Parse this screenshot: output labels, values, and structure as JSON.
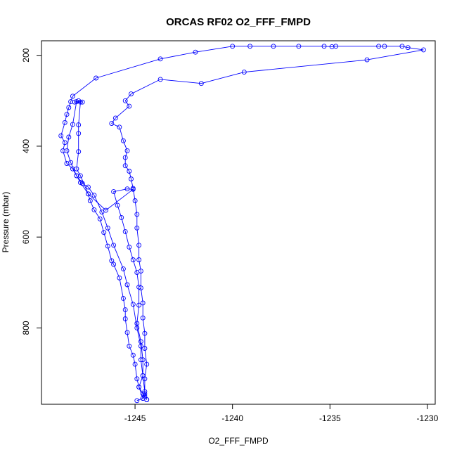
{
  "chart_data": {
    "type": "line",
    "title": "ORCAS RF02 O2_FFF_FMPD",
    "xlabel": "O2_FFF_FMPD",
    "ylabel": "Pressure (mbar)",
    "xlim": [
      -1249.8,
      -1229.6
    ],
    "ylim": [
      168,
      968
    ],
    "y_inverted": true,
    "grid": false,
    "legend": "none",
    "xticks": [
      -1245,
      -1240,
      -1235,
      -1230
    ],
    "yticks": [
      200,
      400,
      600,
      800
    ],
    "xtick_labels": [
      "-1245",
      "-1240",
      "-1235",
      "-1230"
    ],
    "ytick_labels": [
      "200",
      "400",
      "600",
      "800"
    ],
    "line_color": "#0000ff",
    "marker": "open-circle",
    "series": [
      {
        "points": [
          [
            -1244.9,
            960
          ],
          [
            -1244.6,
            955
          ],
          [
            -1244.5,
            950
          ],
          [
            -1244.6,
            945
          ],
          [
            -1244.8,
            930
          ],
          [
            -1244.9,
            912
          ],
          [
            -1245.0,
            880
          ],
          [
            -1245.1,
            860
          ],
          [
            -1245.3,
            840
          ],
          [
            -1245.4,
            810
          ],
          [
            -1245.5,
            780
          ],
          [
            -1245.5,
            760
          ],
          [
            -1245.6,
            735
          ],
          [
            -1245.8,
            690
          ],
          [
            -1246.1,
            660
          ],
          [
            -1246.2,
            652
          ],
          [
            -1246.4,
            620
          ],
          [
            -1246.6,
            590
          ],
          [
            -1246.8,
            560
          ],
          [
            -1247.1,
            540
          ],
          [
            -1247.3,
            520
          ],
          [
            -1247.4,
            505
          ],
          [
            -1247.8,
            480
          ],
          [
            -1248.0,
            465
          ],
          [
            -1248.2,
            450
          ],
          [
            -1248.5,
            438
          ],
          [
            -1248.7,
            410
          ],
          [
            -1248.6,
            392
          ],
          [
            -1248.8,
            377
          ],
          [
            -1248.6,
            348
          ],
          [
            -1248.5,
            330
          ],
          [
            -1248.4,
            315
          ],
          [
            -1248.3,
            302
          ],
          [
            -1248.2,
            290
          ],
          [
            -1247.0,
            250
          ],
          [
            -1243.7,
            208
          ],
          [
            -1241.9,
            193
          ],
          [
            -1240.0,
            180
          ],
          [
            -1239.1,
            180
          ],
          [
            -1237.9,
            180
          ],
          [
            -1236.6,
            180
          ],
          [
            -1235.3,
            180
          ],
          [
            -1234.9,
            181
          ],
          [
            -1234.7,
            180
          ],
          [
            -1232.5,
            180
          ],
          [
            -1232.2,
            180
          ],
          [
            -1231.3,
            180
          ],
          [
            -1231.0,
            183
          ],
          [
            -1230.2,
            188
          ],
          [
            -1233.1,
            210
          ],
          [
            -1239.4,
            237
          ],
          [
            -1241.6,
            262
          ],
          [
            -1243.7,
            253
          ],
          [
            -1245.2,
            285
          ],
          [
            -1245.5,
            300
          ],
          [
            -1245.3,
            312
          ],
          [
            -1246.0,
            338
          ],
          [
            -1246.2,
            350
          ],
          [
            -1245.8,
            358
          ],
          [
            -1245.6,
            388
          ],
          [
            -1245.4,
            410
          ],
          [
            -1245.5,
            425
          ],
          [
            -1245.5,
            443
          ],
          [
            -1245.3,
            455
          ],
          [
            -1245.2,
            472
          ],
          [
            -1245.1,
            493
          ],
          [
            -1245.0,
            520
          ],
          [
            -1244.9,
            550
          ],
          [
            -1244.9,
            580
          ],
          [
            -1244.8,
            618
          ],
          [
            -1244.8,
            650
          ],
          [
            -1244.7,
            675
          ],
          [
            -1244.7,
            712
          ],
          [
            -1244.6,
            745
          ],
          [
            -1244.6,
            778
          ],
          [
            -1244.5,
            812
          ],
          [
            -1244.5,
            845
          ],
          [
            -1244.4,
            880
          ],
          [
            -1244.5,
            912
          ],
          [
            -1244.5,
            945
          ],
          [
            -1244.4,
            958
          ]
        ]
      },
      {
        "points": [
          [
            -1244.4,
            958
          ],
          [
            -1244.5,
            940
          ],
          [
            -1244.6,
            905
          ],
          [
            -1244.7,
            870
          ],
          [
            -1244.7,
            840
          ],
          [
            -1244.9,
            800
          ],
          [
            -1245.1,
            748
          ],
          [
            -1245.4,
            705
          ],
          [
            -1245.6,
            670
          ],
          [
            -1246.1,
            618
          ],
          [
            -1246.4,
            580
          ],
          [
            -1246.7,
            545
          ],
          [
            -1247.1,
            508
          ],
          [
            -1247.4,
            490
          ],
          [
            -1247.7,
            482
          ],
          [
            -1248.0,
            465
          ],
          [
            -1248.3,
            436
          ],
          [
            -1248.5,
            410
          ],
          [
            -1248.4,
            380
          ],
          [
            -1248.2,
            352
          ],
          [
            -1248.0,
            302
          ],
          [
            -1247.7,
            303
          ],
          [
            -1247.9,
            300
          ],
          [
            -1248.1,
            303
          ],
          [
            -1247.8,
            303
          ],
          [
            -1247.9,
            353
          ],
          [
            -1247.9,
            372
          ],
          [
            -1247.9,
            412
          ],
          [
            -1248.0,
            450
          ],
          [
            -1247.8,
            465
          ],
          [
            -1247.4,
            505
          ],
          [
            -1246.5,
            541
          ],
          [
            -1245.1,
            495
          ],
          [
            -1245.4,
            494
          ],
          [
            -1246.1,
            500
          ],
          [
            -1245.9,
            530
          ],
          [
            -1245.7,
            557
          ],
          [
            -1245.5,
            588
          ],
          [
            -1245.3,
            622
          ],
          [
            -1245.1,
            650
          ],
          [
            -1244.9,
            678
          ],
          [
            -1244.8,
            710
          ],
          [
            -1244.8,
            750
          ],
          [
            -1244.9,
            790
          ],
          [
            -1244.7,
            830
          ],
          [
            -1244.6,
            870
          ],
          [
            -1244.6,
            905
          ],
          [
            -1244.8,
            930
          ],
          [
            -1244.6,
            955
          ]
        ]
      }
    ]
  }
}
